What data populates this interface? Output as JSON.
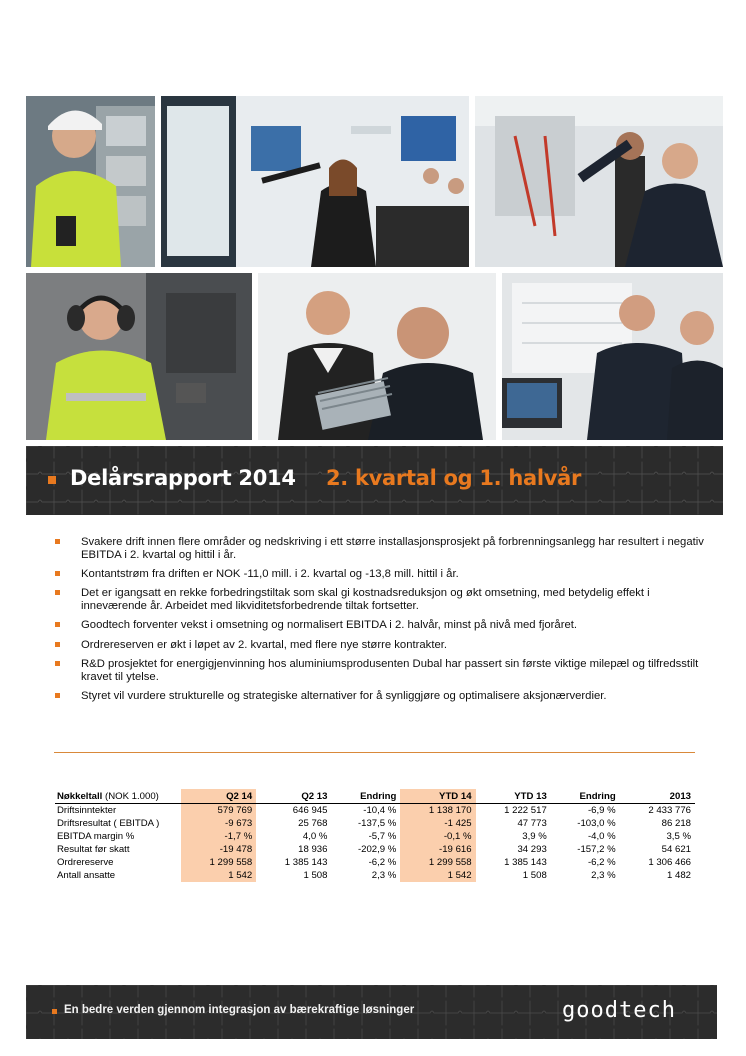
{
  "banner": {
    "title": "Delårsrapport 2014",
    "subtitle": "2. kvartal og 1. halvår"
  },
  "highlights": [
    "Svakere drift innen flere områder og nedskriving i ett større installasjonsprosjekt på forbrenningsanlegg har resultert i negativ EBITDA i 2. kvartal og hittil i år.",
    "Kontantstrøm fra driften er NOK -11,0 mill. i 2. kvartal og -13,8 mill. hittil i år.",
    "Det er igangsatt en rekke forbedringstiltak som skal gi kostnadsreduksjon og økt omsetning, med betydelig effekt i inneværende år. Arbeidet med likviditetsforbedrende tiltak fortsetter.",
    "Goodtech forventer vekst i omsetning og normalisert EBITDA  i 2. halvår, minst på nivå med fjoråret.",
    "Ordrereserven er økt i løpet av 2. kvartal, med flere nye større kontrakter.",
    "R&D prosjektet for energigjenvinning hos aluminiumsprodusenten Dubal har passert sin første viktige milepæl og tilfredsstilt kravet til ytelse.",
    "Styret vil vurdere strukturelle og strategiske alternativer for å synliggjøre og optimalisere aksjonærverdier."
  ],
  "table": {
    "title": "Nøkkeltall",
    "unit": "(NOK 1.000)",
    "columns": [
      "Q2 14",
      "Q2 13",
      "Endring",
      "YTD 14",
      "YTD 13",
      "Endring",
      "2013"
    ],
    "rows": [
      {
        "label": "Driftsinntekter",
        "cells": [
          "579 769",
          "646 945",
          "-10,4 %",
          "1 138 170",
          "1 222 517",
          "-6,9 %",
          "2 433 776"
        ]
      },
      {
        "label": "Driftsresultat ( EBITDA )",
        "cells": [
          "-9 673",
          "25 768",
          "-137,5 %",
          "-1 425",
          "47 773",
          "-103,0 %",
          "86 218"
        ]
      },
      {
        "label": "EBITDA margin %",
        "cells": [
          "-1,7 %",
          "4,0 %",
          "-5,7 %",
          "-0,1 %",
          "3,9 %",
          "-4,0 %",
          "3,5 %"
        ]
      },
      {
        "label": "Resultat før skatt",
        "cells": [
          "-19 478",
          "18 936",
          "-202,9 %",
          "-19 616",
          "34 293",
          "-157,2 %",
          "54 621"
        ]
      },
      {
        "label": "Ordrereserve",
        "cells": [
          "1 299 558",
          "1 385 143",
          "-6,2 %",
          "1 299 558",
          "1 385 143",
          "-6,2 %",
          "1 306 466"
        ]
      },
      {
        "label": "Antall ansatte",
        "cells": [
          "1 542",
          "1 508",
          "2,3 %",
          "1 542",
          "1 508",
          "2,3 %",
          "1 482"
        ]
      }
    ]
  },
  "footer": {
    "slogan": "En bedre verden gjennom integrasjon av bærekraftige løsninger",
    "logo": "goodtech"
  },
  "colors": {
    "accent": "#e8791f",
    "highlight": "#fbcfad",
    "banner_bg": "#2b2b2b"
  }
}
